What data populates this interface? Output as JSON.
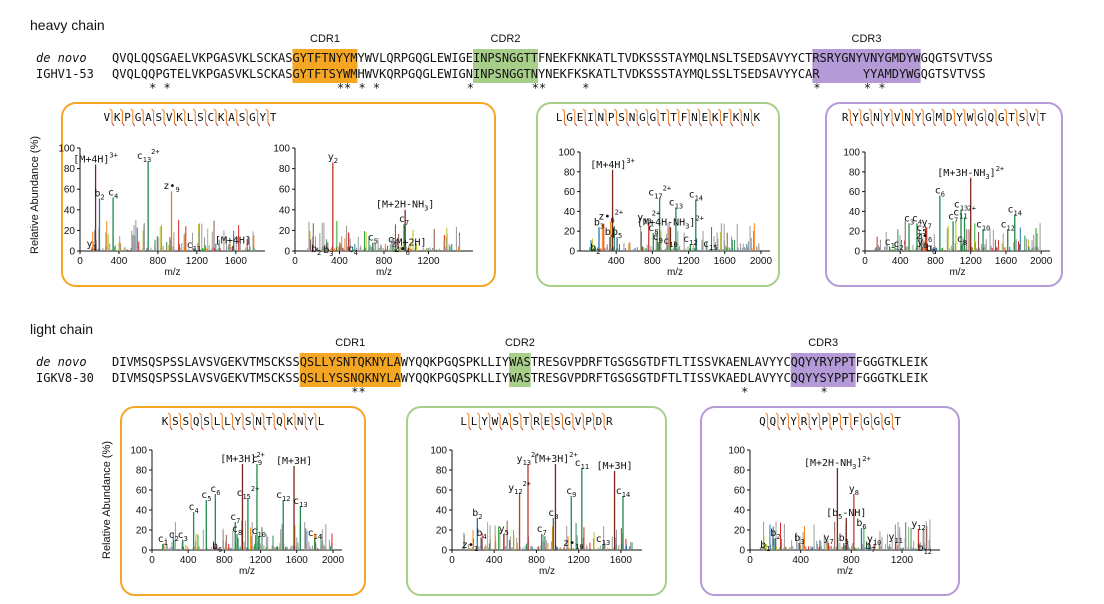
{
  "heavy": {
    "chain_label": "heavy chain",
    "cdr_labels": [
      "CDR1",
      "CDR2",
      "CDR3"
    ],
    "denovo_label": "de novo",
    "denovo_seq": "QVQLQQSGAELVKPGASVKLSCKASGYTFTNYYMYWVLQRPGQGLEWIGEINPSNGGTTFNEKFKNKATLTVDKSSSTAYMQLNSLTSEDSAVYYCTRSRYGNYVNYGMDYWGQGTSVTVSS",
    "germline_label": "IGHV1-53",
    "germline_seq": "QVQLQQPGTELVKPGASVKLSCKASGYTFTSYWMHWVKQRPGQGLEWIGNINPSNGGTNYNEKFKSKATLTVDKSSSTAYMQLSSLTSEDSAVYYCAR      YYAMDYWGQGTSVTVSS",
    "asterisks": [
      5,
      7,
      31,
      32,
      34,
      36,
      49,
      58,
      59,
      65,
      97,
      104,
      106
    ],
    "colors": {
      "cdr1": "#F5A623",
      "cdr2": "#A8CF8A",
      "cdr3": "#B49AD6"
    },
    "panels": [
      {
        "peptide": "VKPGASVKLSCKASGYT",
        "spectra": [
          {
            "xlim": [
              0,
              1900
            ],
            "xticks": [
              0,
              400,
              800,
              1200,
              1600
            ],
            "yticks": [
              0,
              20,
              40,
              60,
              80,
              100
            ],
            "annotations": [
              {
                "t": "[M+4H]",
                "sup": "3+",
                "mz": 160,
                "y": 90
              },
              {
                "t": "c",
                "sub": "13",
                "sup": "2+",
                "mz": 700,
                "y": 93
              },
              {
                "t": "z•",
                "sub": "9",
                "mz": 940,
                "y": 64
              },
              {
                "t": "b",
                "sub": "2",
                "mz": 200,
                "y": 57
              },
              {
                "t": "c",
                "sub": "4",
                "mz": 340,
                "y": 58
              },
              {
                "t": "y",
                "sub": "1",
                "mz": 120,
                "y": 8
              },
              {
                "t": "c",
                "sub": "11",
                "mz": 1170,
                "y": 7
              },
              {
                "t": "[M+4H]",
                "mz": 1570,
                "y": 11
              }
            ]
          },
          {
            "xlim": [
              0,
              1600
            ],
            "xticks": [
              0,
              400,
              800,
              1200
            ],
            "yticks": [
              0,
              20,
              40,
              60,
              80,
              100
            ],
            "annotations": [
              {
                "t": "y",
                "sub": "2",
                "mz": 340,
                "y": 92
              },
              {
                "t": "[M+2H-NH",
                "sub": "3",
                "post": "]",
                "mz": 990,
                "y": 46
              },
              {
                "t": "c",
                "sub": "7",
                "mz": 980,
                "y": 32
              },
              {
                "t": "c",
                "sub": "5",
                "mz": 700,
                "y": 14
              },
              {
                "t": "c",
                "sub": "6",
                "mz": 880,
                "y": 12
              },
              {
                "t": "z•",
                "sub": "6",
                "mz": 960,
                "y": 3
              },
              {
                "t": "[M+2H]",
                "mz": 1020,
                "y": 9
              },
              {
                "t": "b",
                "sub": "2",
                "mz": 190,
                "y": 3
              },
              {
                "t": "b",
                "sub": "3",
                "mz": 300,
                "y": 2
              },
              {
                "t": "c",
                "sub": "4",
                "mz": 520,
                "y": 3
              }
            ]
          }
        ]
      },
      {
        "peptide": "LGEINPSNGGTTFNEKFKNK",
        "spectra": [
          {
            "xlim": [
              0,
              2100
            ],
            "xticks": [
              400,
              800,
              1200,
              1600,
              2000
            ],
            "yticks": [
              0,
              20,
              40,
              60,
              80,
              100
            ],
            "annotations": [
              {
                "t": "[M+4H]",
                "sup": "3+",
                "mz": 360,
                "y": 88
              },
              {
                "t": "c",
                "sub": "17",
                "sup": "2+",
                "mz": 880,
                "y": 60
              },
              {
                "t": "c",
                "sub": "14",
                "mz": 1280,
                "y": 58
              },
              {
                "t": "c",
                "sub": "13",
                "mz": 1060,
                "y": 50
              },
              {
                "t": "y",
                "sub": "13",
                "sup": "2+",
                "mz": 760,
                "y": 35
              },
              {
                "t": "[M+4H-NH",
                "sub": "3",
                "post": "]",
                "sup": "2+",
                "mz": 1000,
                "y": 30
              },
              {
                "t": "z•",
                "sub": "6",
                "sup": "2+",
                "mz": 340,
                "y": 36
              },
              {
                "t": "b",
                "sub": "3",
                "mz": 210,
                "y": 30
              },
              {
                "t": "c",
                "sub": "8",
                "mz": 810,
                "y": 24
              },
              {
                "t": "c",
                "sub": "9",
                "mz": 860,
                "y": 15
              },
              {
                "t": "b",
                "sub": "4",
                "mz": 330,
                "y": 20
              },
              {
                "t": "b",
                "sub": "5",
                "mz": 410,
                "y": 20
              },
              {
                "t": "c",
                "sub": "12",
                "mz": 1220,
                "y": 13
              },
              {
                "t": "c",
                "sub": "10",
                "mz": 1000,
                "y": 11
              },
              {
                "t": "c",
                "sub": "15",
                "mz": 1440,
                "y": 8
              },
              {
                "t": "b",
                "sub": "2",
                "mz": 170,
                "y": 4
              }
            ]
          }
        ]
      },
      {
        "peptide": "RYGNYVNYGMDYWGQGTSVT",
        "spectra": [
          {
            "xlim": [
              0,
              2100
            ],
            "xticks": [
              0,
              400,
              800,
              1200,
              1600,
              2000
            ],
            "yticks": [
              0,
              20,
              40,
              60,
              80,
              100
            ],
            "annotations": [
              {
                "t": "[M+3H-NH",
                "sub": "3",
                "post": "]",
                "sup": "2+",
                "mz": 1200,
                "y": 80
              },
              {
                "t": "c",
                "sub": "6",
                "mz": 850,
                "y": 62
              },
              {
                "t": "c",
                "sub": "14",
                "mz": 1700,
                "y": 43
              },
              {
                "t": "c",
                "sub": "13",
                "mz": 1090,
                "y": 48
              },
              {
                "t": "c",
                "sub": "11",
                "sup": "2+",
                "mz": 1130,
                "y": 40
              },
              {
                "t": "c",
                "sub": "3",
                "mz": 500,
                "y": 34
              },
              {
                "t": "c",
                "sub": "4",
                "mz": 590,
                "y": 34
              },
              {
                "t": "y",
                "sub": "7",
                "mz": 700,
                "y": 30
              },
              {
                "t": "c",
                "sub": "7",
                "mz": 1000,
                "y": 36
              },
              {
                "t": "c",
                "sub": "5",
                "mz": 640,
                "y": 24
              },
              {
                "t": "c",
                "sub": "10",
                "mz": 1340,
                "y": 28
              },
              {
                "t": "c",
                "sub": "12",
                "mz": 1620,
                "y": 28
              },
              {
                "t": "z•",
                "sub": "6",
                "mz": 670,
                "y": 16
              },
              {
                "t": "y",
                "sub": "6",
                "mz": 650,
                "y": 10
              },
              {
                "t": "b",
                "sub": "6",
                "mz": 750,
                "y": 4
              },
              {
                "t": "c",
                "sub": "8",
                "mz": 1100,
                "y": 13
              },
              {
                "t": "c",
                "sub": "1",
                "mz": 280,
                "y": 10
              },
              {
                "t": "c",
                "sub": "2",
                "mz": 380,
                "y": 8
              }
            ]
          }
        ]
      }
    ]
  },
  "light": {
    "chain_label": "light chain",
    "cdr_labels": [
      "CDR1",
      "CDR2",
      "CDR3"
    ],
    "denovo_label": "de novo",
    "denovo_seq": "DIVMSQSPSSLAVSVGEKVTMSCKSSQSLLYSNTQKNYLAWYQQKPGQSPKLLIYWASTRESGVPDRFTGSGSGTDFTLTISSVKAENLAVYYCQQYYRYPPTFGGGTKLEIK",
    "germline_label": "IGKV8-30",
    "germline_seq": "DIVMSQSPSSLAVSVGEKVTMSCKSSQSLLYSSNQKNYLAWYQQKPGQSPKLLIYWASTRESGVPDRFTGSGSGTDFTLTISSVKAEDLAVYYCQQYYSYPPTFGGGTKLEIK",
    "asterisks": [
      33,
      34,
      87,
      98
    ],
    "colors": {
      "cdr1": "#F5A623",
      "cdr2": "#A8CF8A",
      "cdr3": "#B49AD6"
    },
    "panels": [
      {
        "peptide": "KSSQSLLYSNTQKNYL",
        "spectra": [
          {
            "xlim": [
              0,
              2100
            ],
            "xticks": [
              0,
              400,
              800,
              1200,
              1600,
              2000
            ],
            "yticks": [
              0,
              20,
              40,
              60,
              80,
              100
            ],
            "annotations": [
              {
                "t": "[M+3H]",
                "sup": "2+",
                "mz": 1000,
                "y": 92
              },
              {
                "t": "c",
                "sub": "9",
                "mz": 1160,
                "y": 92
              },
              {
                "t": "[M+3H]",
                "mz": 1570,
                "y": 90
              },
              {
                "t": "c",
                "sub": "15",
                "sup": "2+",
                "mz": 1060,
                "y": 58
              },
              {
                "t": "c",
                "sub": "6",
                "mz": 700,
                "y": 62
              },
              {
                "t": "c",
                "sub": "5",
                "mz": 600,
                "y": 56
              },
              {
                "t": "c",
                "sub": "4",
                "mz": 460,
                "y": 44
              },
              {
                "t": "c",
                "sub": "12",
                "mz": 1450,
                "y": 56
              },
              {
                "t": "c",
                "sub": "13",
                "mz": 1640,
                "y": 50
              },
              {
                "t": "c",
                "sub": "7",
                "mz": 920,
                "y": 34
              },
              {
                "t": "c",
                "sub": "8",
                "mz": 940,
                "y": 22
              },
              {
                "t": "c",
                "sub": "10",
                "mz": 1180,
                "y": 20
              },
              {
                "t": "c",
                "sub": "14",
                "mz": 1800,
                "y": 18
              },
              {
                "t": "c",
                "sub": "2",
                "mz": 240,
                "y": 16
              },
              {
                "t": "c",
                "sub": "3",
                "mz": 340,
                "y": 16
              },
              {
                "t": "c",
                "sub": "1",
                "mz": 120,
                "y": 12
              },
              {
                "t": "b",
                "sub": "6",
                "mz": 720,
                "y": 5
              }
            ]
          }
        ]
      },
      {
        "peptide": "LLYWASTRESGVPDR",
        "spectra": [
          {
            "xlim": [
              0,
              1800
            ],
            "xticks": [
              0,
              400,
              800,
              1200,
              1600
            ],
            "yticks": [
              0,
              20,
              40,
              60,
              80,
              100
            ],
            "annotations": [
              {
                "t": "y",
                "sub": "13",
                "sup": "2+",
                "mz": 720,
                "y": 92
              },
              {
                "t": "[M+3H]",
                "sup": "2+",
                "mz": 980,
                "y": 92
              },
              {
                "t": "c",
                "sub": "11",
                "mz": 1230,
                "y": 88
              },
              {
                "t": "[M+3H]",
                "mz": 1540,
                "y": 85
              },
              {
                "t": "y",
                "sub": "12",
                "sup": "2+",
                "mz": 640,
                "y": 63
              },
              {
                "t": "c",
                "sub": "9",
                "mz": 1130,
                "y": 60
              },
              {
                "t": "c",
                "sub": "14",
                "mz": 1620,
                "y": 60
              },
              {
                "t": "c",
                "sub": "8",
                "mz": 960,
                "y": 38
              },
              {
                "t": "y",
                "sub": "5",
                "mz": 490,
                "y": 22
              },
              {
                "t": "c",
                "sub": "7",
                "mz": 850,
                "y": 22
              },
              {
                "t": "b",
                "sub": "2",
                "mz": 240,
                "y": 38
              },
              {
                "t": "b",
                "sub": "4",
                "mz": 280,
                "y": 18
              },
              {
                "t": "c",
                "sub": "13",
                "mz": 1430,
                "y": 12
              },
              {
                "t": "z•",
                "sub": "10",
                "mz": 1150,
                "y": 8
              },
              {
                "t": "z•",
                "sub": "1",
                "mz": 170,
                "y": 6
              }
            ]
          }
        ]
      },
      {
        "peptide": "QQYYRYPPTFGGGT",
        "spectra": [
          {
            "xlim": [
              0,
              1500
            ],
            "xticks": [
              0,
              400,
              800,
              1200
            ],
            "yticks": [
              0,
              20,
              40,
              60,
              80,
              100
            ],
            "annotations": [
              {
                "t": "[M+2H-NH",
                "sub": "3",
                "post": "]",
                "sup": "2+",
                "mz": 690,
                "y": 88
              },
              {
                "t": "y",
                "sub": "8",
                "mz": 820,
                "y": 62
              },
              {
                "t": "[b",
                "sub": "5",
                "post": "-NH]",
                "mz": 760,
                "y": 38
              },
              {
                "t": "b",
                "sub": "6",
                "mz": 880,
                "y": 28
              },
              {
                "t": "y",
                "sub": "12",
                "mz": 1330,
                "y": 27
              },
              {
                "t": "b",
                "sub": "2",
                "mz": 200,
                "y": 18
              },
              {
                "t": "b",
                "sub": "3",
                "mz": 390,
                "y": 13
              },
              {
                "t": "y",
                "sub": "7",
                "mz": 620,
                "y": 13
              },
              {
                "t": "b",
                "sub": "5",
                "mz": 740,
                "y": 13
              },
              {
                "t": "y",
                "sub": "10",
                "mz": 980,
                "y": 12
              },
              {
                "t": "y",
                "sub": "11",
                "mz": 1150,
                "y": 14
              },
              {
                "t": "b",
                "sub": "1",
                "mz": 120,
                "y": 6
              },
              {
                "t": "b",
                "sub": "7",
                "mz": 950,
                "y": 5
              },
              {
                "t": "b",
                "sub": "12",
                "mz": 1380,
                "y": 3
              }
            ]
          }
        ]
      }
    ]
  },
  "axis": {
    "ylabel": "Relative Abundance (%)",
    "xlabel": "m/z"
  }
}
